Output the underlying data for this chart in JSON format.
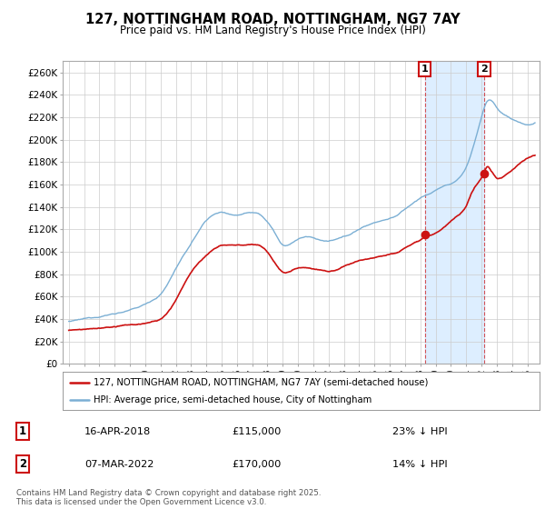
{
  "title": "127, NOTTINGHAM ROAD, NOTTINGHAM, NG7 7AY",
  "subtitle": "Price paid vs. HM Land Registry's House Price Index (HPI)",
  "ylabel_vals": [
    "£0",
    "£20K",
    "£40K",
    "£60K",
    "£80K",
    "£100K",
    "£120K",
    "£140K",
    "£160K",
    "£180K",
    "£200K",
    "£220K",
    "£240K",
    "£260K"
  ],
  "ylim": [
    0,
    270000
  ],
  "yticks": [
    0,
    20000,
    40000,
    60000,
    80000,
    100000,
    120000,
    140000,
    160000,
    180000,
    200000,
    220000,
    240000,
    260000
  ],
  "hpi_color": "#7bafd4",
  "hpi_fill_color": "#ddeeff",
  "price_color": "#cc1111",
  "marker1_x": 2018.29,
  "marker1_y": 115000,
  "marker2_x": 2022.17,
  "marker2_y": 170000,
  "vline1_x": 2018.29,
  "vline2_x": 2022.17,
  "legend_line1": "127, NOTTINGHAM ROAD, NOTTINGHAM, NG7 7AY (semi-detached house)",
  "legend_line2": "HPI: Average price, semi-detached house, City of Nottingham",
  "annotation1_num": "1",
  "annotation1_date": "16-APR-2018",
  "annotation1_price": "£115,000",
  "annotation1_hpi": "23% ↓ HPI",
  "annotation2_num": "2",
  "annotation2_date": "07-MAR-2022",
  "annotation2_price": "£170,000",
  "annotation2_hpi": "14% ↓ HPI",
  "footer": "Contains HM Land Registry data © Crown copyright and database right 2025.\nThis data is licensed under the Open Government Licence v3.0.",
  "background_color": "#ffffff",
  "grid_color": "#cccccc",
  "xlim_left": 1994.6,
  "xlim_right": 2025.8
}
